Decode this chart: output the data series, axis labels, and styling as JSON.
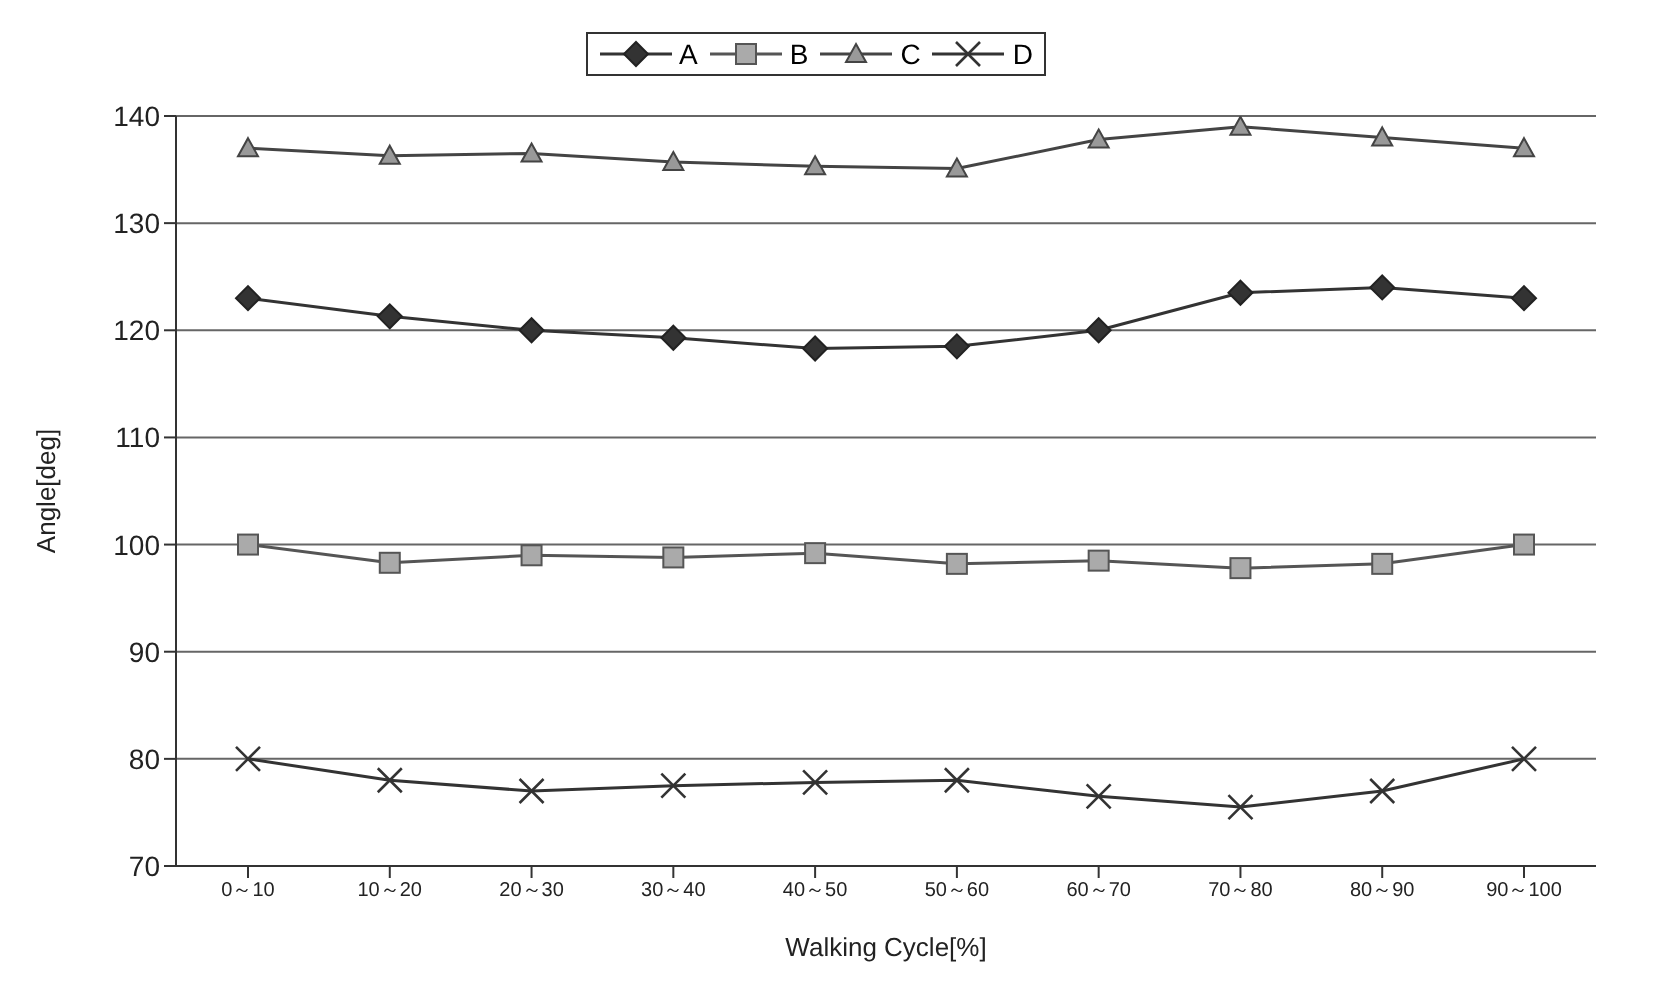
{
  "chart_data": {
    "type": "line",
    "xlabel": "Walking Cycle[%]",
    "ylabel": "Angle[deg]",
    "categories": [
      "0～10",
      "10～20",
      "20～30",
      "30～40",
      "40～50",
      "50～60",
      "60～70",
      "70～80",
      "80～90",
      "90～100"
    ],
    "series": [
      {
        "name": "A",
        "color": "#333333",
        "marker": "diamond",
        "values": [
          123,
          121.3,
          120,
          119.3,
          118.3,
          118.5,
          120,
          123.5,
          124,
          123
        ]
      },
      {
        "name": "B",
        "color": "#555555",
        "marker": "square",
        "values": [
          100,
          98.3,
          99,
          98.8,
          99.2,
          98.2,
          98.5,
          97.8,
          98.2,
          100
        ]
      },
      {
        "name": "C",
        "color": "#444444",
        "marker": "triangle",
        "values": [
          137,
          136.3,
          136.5,
          135.7,
          135.3,
          135.1,
          137.8,
          139,
          138,
          137
        ]
      },
      {
        "name": "D",
        "color": "#333333",
        "marker": "cross",
        "values": [
          80,
          78,
          77,
          77.5,
          77.8,
          78,
          76.5,
          75.5,
          77,
          80
        ]
      }
    ],
    "ylim": [
      70,
      140
    ],
    "yticks": [
      70,
      80,
      90,
      100,
      110,
      120,
      130,
      140
    ],
    "grid": "y",
    "legend": "top"
  }
}
